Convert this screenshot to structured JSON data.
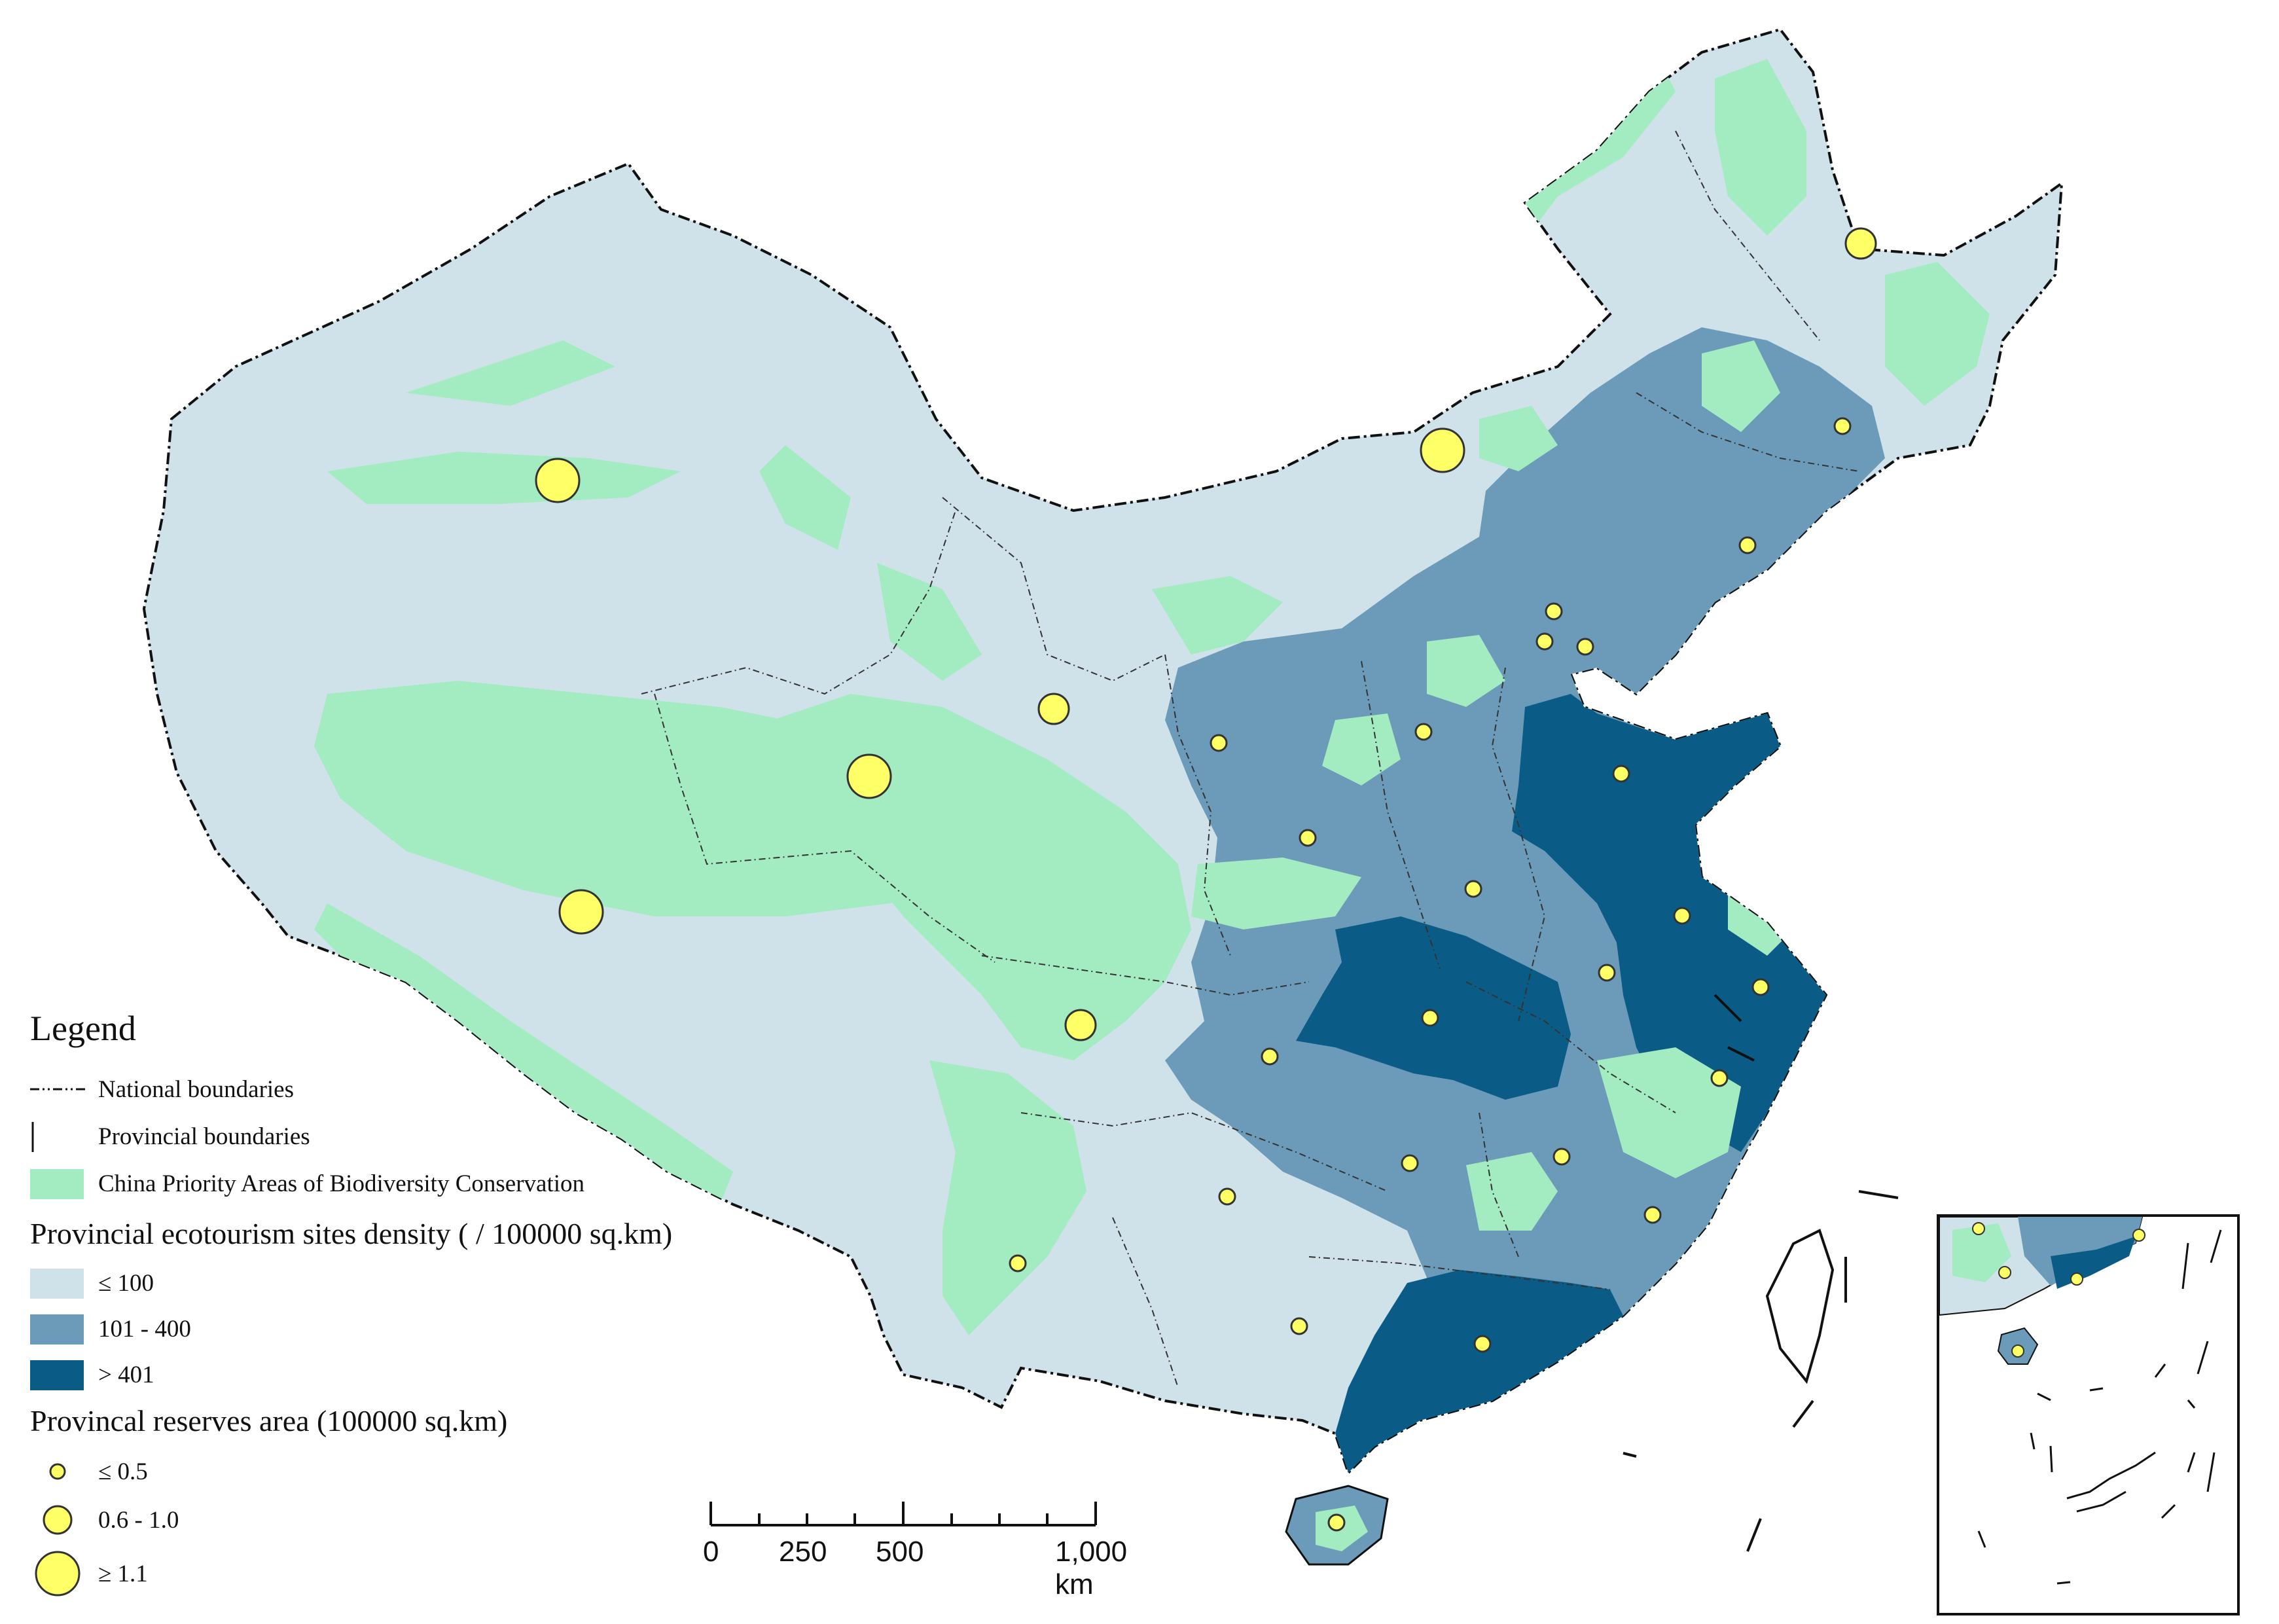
{
  "legend": {
    "title": "Legend",
    "national_boundaries": "National boundaries",
    "provincial_boundaries": "Provincial boundaries",
    "priority_areas": "China Priority Areas of Biodiversity Conservation",
    "density_title": "Provincial ecotourism sites density ( / 100000 sq.km)",
    "density_classes": [
      {
        "label": "≤ 100",
        "color": "#cfe2e9"
      },
      {
        "label": "101 - 400",
        "color": "#6b9bb8"
      },
      {
        "label": "> 401",
        "color": "#0a5c87"
      }
    ],
    "reserves_title": "Provincal reserves area (100000 sq.km)",
    "reserve_classes": [
      {
        "label": "≤ 0.5"
      },
      {
        "label": "0.6 - 1.0"
      },
      {
        "label": "≥ 1.1"
      }
    ]
  },
  "colors": {
    "priority_green": "#a3ebc1",
    "marker_fill": "#ffff66",
    "marker_stroke": "#333333",
    "boundary": "#222222"
  },
  "scalebar": {
    "labels": [
      "0",
      "250",
      "500",
      "1,000 km"
    ]
  }
}
